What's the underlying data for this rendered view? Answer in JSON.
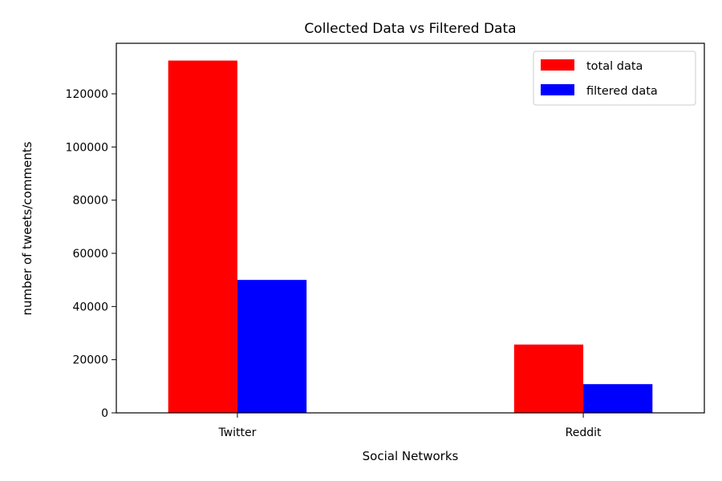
{
  "chart_data": {
    "type": "bar",
    "title": "Collected Data vs Filtered Data",
    "xlabel": "Social Networks",
    "ylabel": "number of tweets/comments",
    "categories": [
      "Twitter",
      "Reddit"
    ],
    "series": [
      {
        "name": "total data",
        "values": [
          132500,
          25700
        ],
        "color": "#ff0000"
      },
      {
        "name": "filtered data",
        "values": [
          50000,
          10800
        ],
        "color": "#0000ff"
      }
    ],
    "ylim": [
      0,
      139000
    ],
    "yticks": [
      0,
      20000,
      40000,
      60000,
      80000,
      100000,
      120000
    ],
    "grid": false,
    "legend_position": "top-right"
  }
}
